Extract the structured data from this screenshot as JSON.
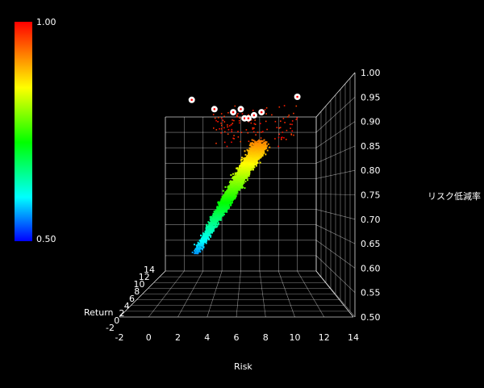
{
  "chart_data": {
    "type": "scatter",
    "projection": "3d",
    "xlabel": "Risk",
    "ylabel": "Return",
    "zlabel": "リスク低減率",
    "xlim": [
      -2,
      14
    ],
    "ylim": [
      -2,
      14
    ],
    "zlim": [
      0.5,
      1.0
    ],
    "x_ticks": [
      "-2",
      "0",
      "2",
      "4",
      "6",
      "8",
      "10",
      "12",
      "14"
    ],
    "y_ticks": [
      "-2",
      "0",
      "2",
      "4",
      "6",
      "8",
      "10",
      "12",
      "14"
    ],
    "y_tick_labels_visible": [
      "-2",
      "0",
      "2",
      "4",
      "6",
      "8",
      "10",
      "12",
      "14"
    ],
    "z_ticks": [
      "0.50",
      "0.55",
      "0.60",
      "0.65",
      "0.70",
      "0.75",
      "0.80",
      "0.85",
      "0.90",
      "0.95",
      "1.00"
    ],
    "colorbar": {
      "min_label": "0.50",
      "max_label": "1.00",
      "min": 0.5,
      "max": 1.0,
      "colors": [
        "#0000ff",
        "#00ffff",
        "#00ff00",
        "#ffff00",
        "#ff8000",
        "#ff0000"
      ]
    },
    "grid": true,
    "highlighted_points": [
      {
        "x": 0.8,
        "y": 8,
        "z": 0.99
      },
      {
        "x": 3.2,
        "y": 8,
        "z": 0.96
      },
      {
        "x": 5.2,
        "y": 8,
        "z": 0.95
      },
      {
        "x": 6.0,
        "y": 8,
        "z": 0.96
      },
      {
        "x": 6.4,
        "y": 8,
        "z": 0.93
      },
      {
        "x": 6.8,
        "y": 8,
        "z": 0.93
      },
      {
        "x": 8.2,
        "y": 8,
        "z": 0.95
      },
      {
        "x": 7.4,
        "y": 8,
        "z": 0.94
      },
      {
        "x": 12.0,
        "y": 8,
        "z": 1.0
      }
    ]
  }
}
